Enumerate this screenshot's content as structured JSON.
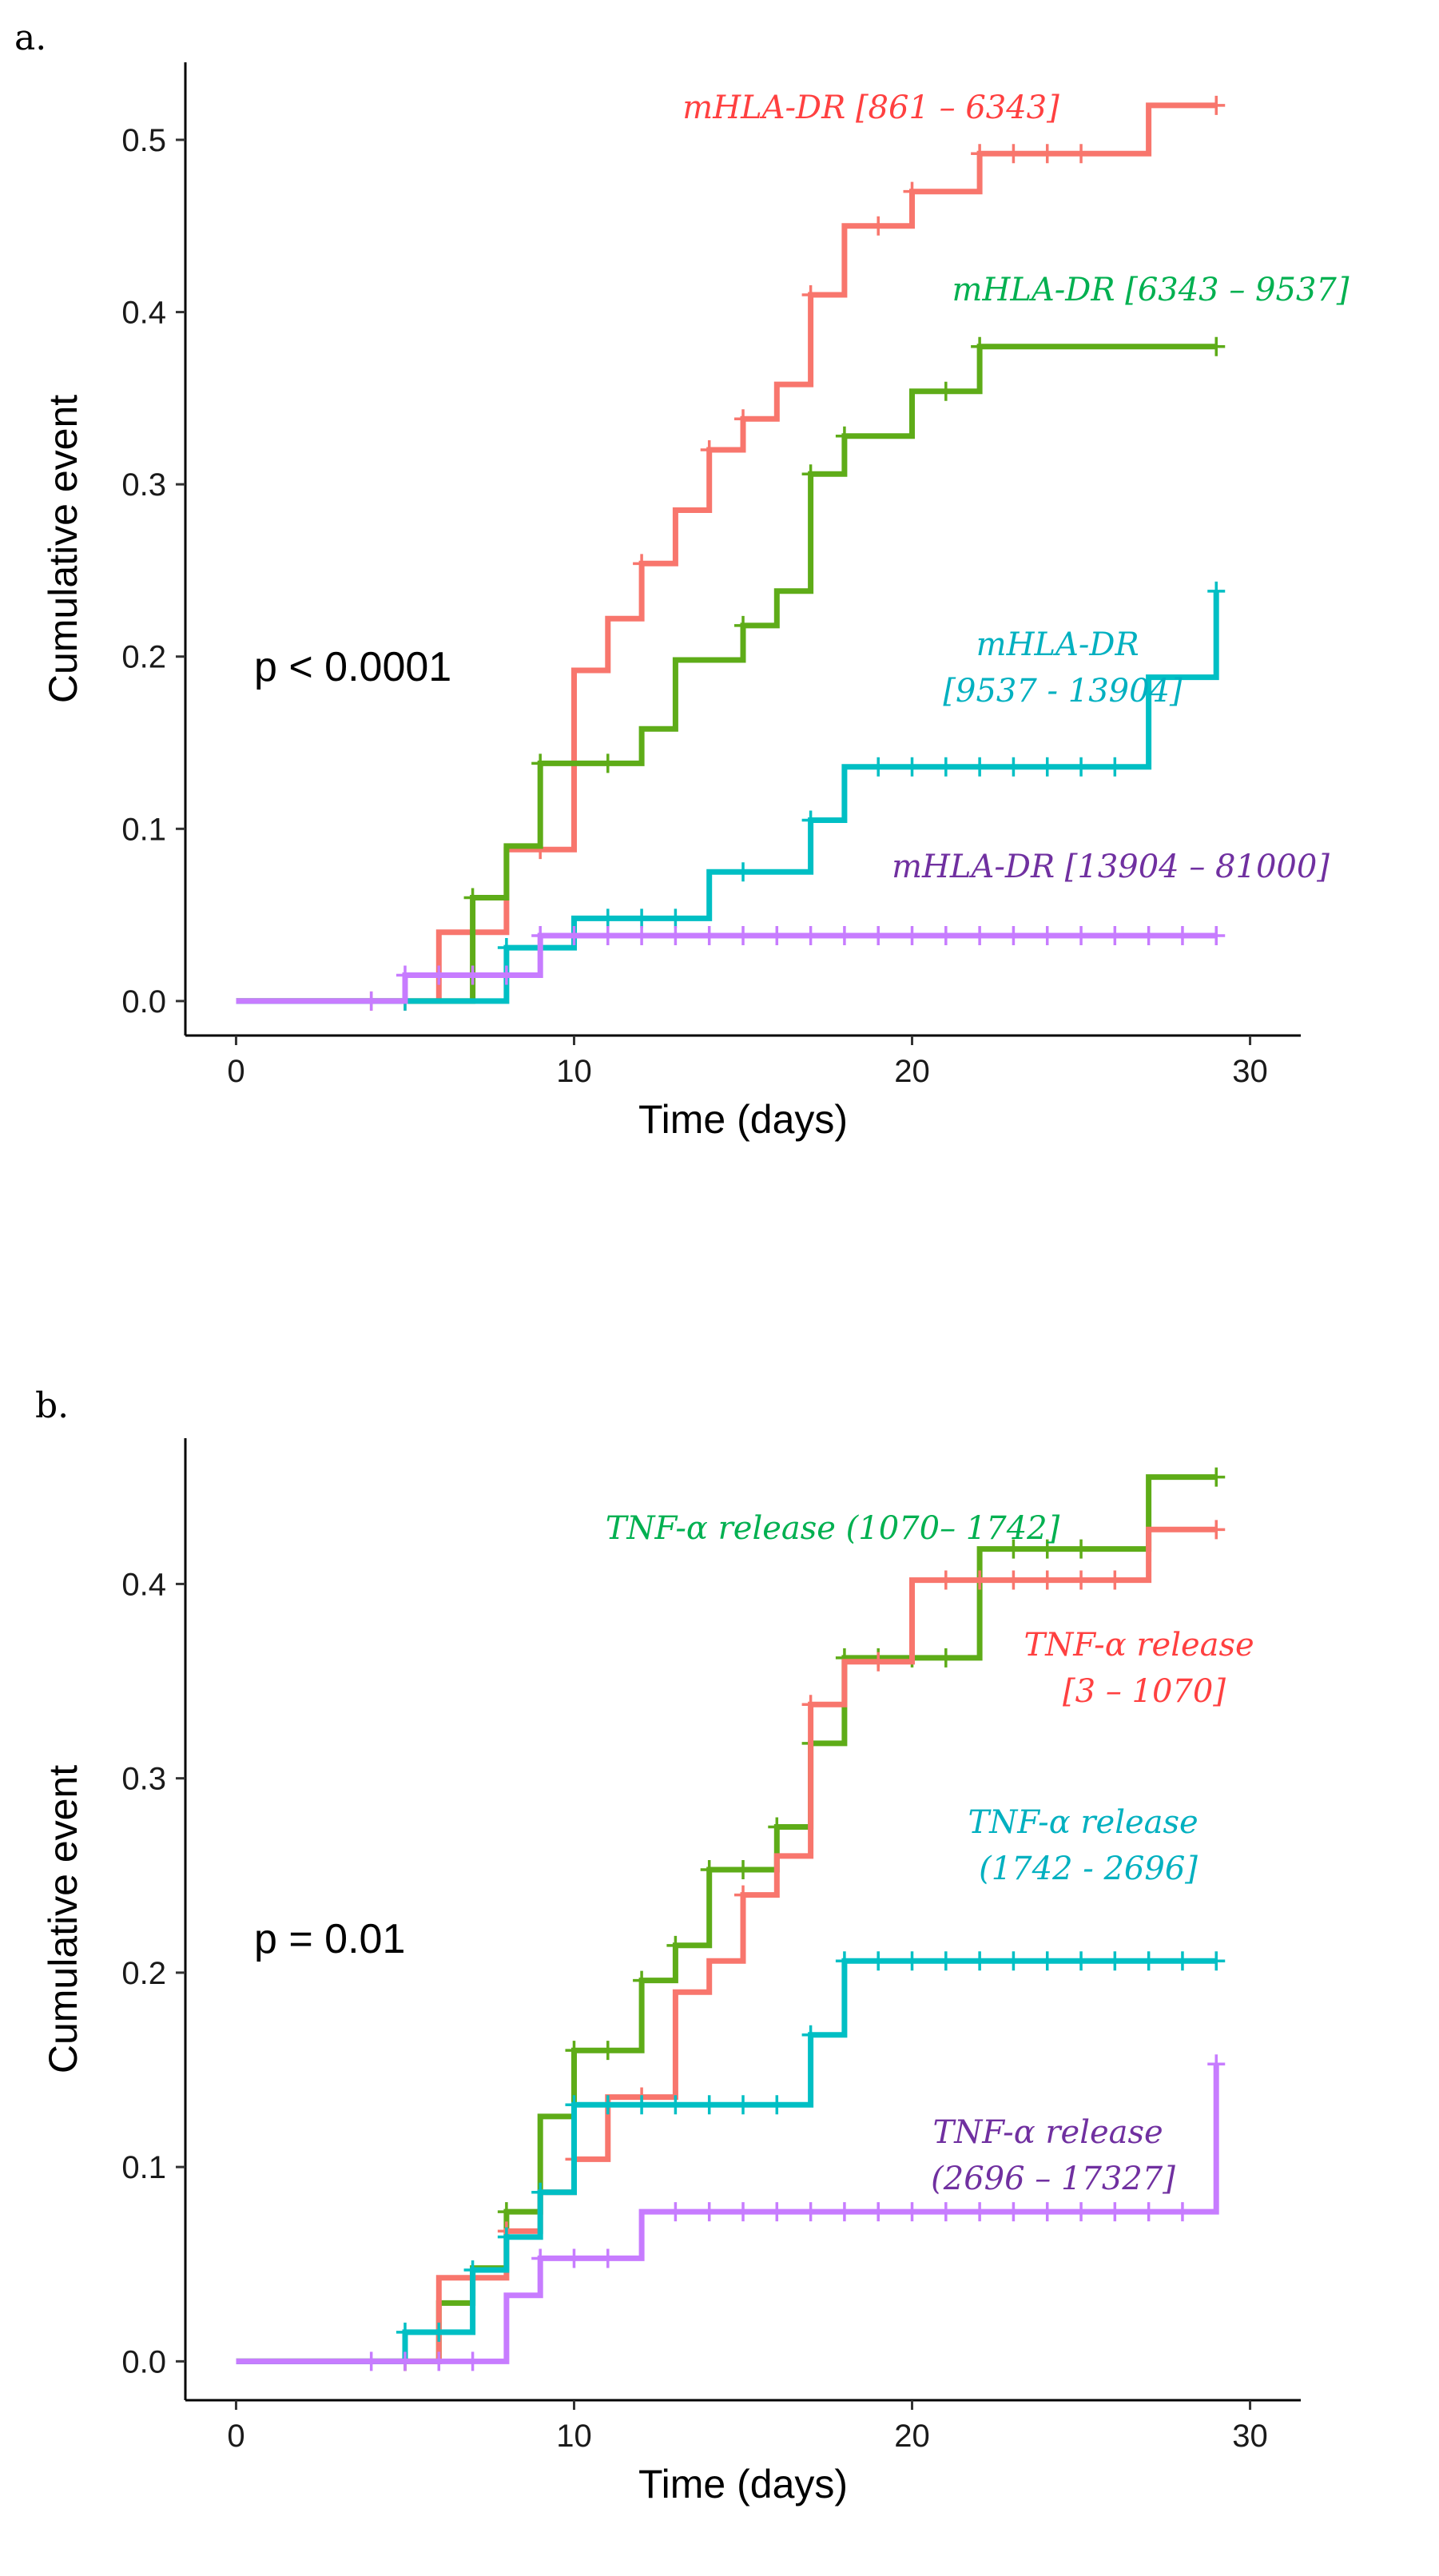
{
  "chart_data": [
    {
      "panel_label": "a.",
      "type": "line",
      "subtype": "step (Kaplan-Meier cumulative event)",
      "xlabel": "Time (days)",
      "ylabel": "Cumulative event",
      "xlim": [
        -1.5,
        31.5
      ],
      "ylim": [
        -0.02,
        0.545
      ],
      "xticks": [
        0,
        10,
        20,
        30
      ],
      "yticks": [
        0.0,
        0.1,
        0.2,
        0.3,
        0.4,
        0.5
      ],
      "ytick_labels": [
        "0.0",
        "0.1",
        "0.2",
        "0.3",
        "0.4",
        "0.5"
      ],
      "grid": false,
      "p_value_text": "p < 0.0001",
      "series": [
        {
          "name": "mHLA-DR [861 – 6343]",
          "label_lines": [
            "mHLA-DR [861 – 6343]"
          ],
          "color": "#f8766d",
          "label_color": "#ff4040",
          "steps": [
            [
              0,
              0
            ],
            [
              6,
              0.04
            ],
            [
              8,
              0.088
            ],
            [
              10,
              0.192
            ],
            [
              11,
              0.222
            ],
            [
              12,
              0.254
            ],
            [
              13,
              0.285
            ],
            [
              14,
              0.32
            ],
            [
              15,
              0.338
            ],
            [
              16,
              0.358
            ],
            [
              17,
              0.41
            ],
            [
              18,
              0.45
            ],
            [
              20,
              0.47
            ],
            [
              22,
              0.492
            ],
            [
              27,
              0.52
            ]
          ],
          "censor_x": [
            4,
            5,
            7,
            9,
            12,
            14,
            15,
            17,
            19,
            20,
            22,
            23,
            24,
            25,
            29
          ],
          "end_x": 29
        },
        {
          "name": "mHLA-DR [6343 – 9537]",
          "label_lines": [
            "mHLA-DR [6343 – 9537]"
          ],
          "color": "#5eac18",
          "label_color": "#00b050",
          "steps": [
            [
              0,
              0
            ],
            [
              7,
              0.06
            ],
            [
              8,
              0.09
            ],
            [
              9,
              0.138
            ],
            [
              12,
              0.158
            ],
            [
              13,
              0.198
            ],
            [
              15,
              0.218
            ],
            [
              16,
              0.238
            ],
            [
              17,
              0.306
            ],
            [
              18,
              0.328
            ],
            [
              20,
              0.354
            ],
            [
              22,
              0.38
            ]
          ],
          "censor_x": [
            7,
            9,
            11,
            15,
            17,
            18,
            21,
            22,
            29
          ],
          "end_x": 29
        },
        {
          "name": "mHLA-DR [9537 - 13904]",
          "label_lines": [
            "mHLA-DR",
            "[9537 - 13904]"
          ],
          "color": "#00bfc4",
          "label_color": "#00b0c0",
          "steps": [
            [
              0,
              0
            ],
            [
              8,
              0.031
            ],
            [
              10,
              0.048
            ],
            [
              14,
              0.075
            ],
            [
              17,
              0.105
            ],
            [
              18,
              0.136
            ],
            [
              27,
              0.188
            ],
            [
              29,
              0.238
            ]
          ],
          "censor_x": [
            5,
            8,
            11,
            12,
            13,
            15,
            17,
            19,
            20,
            21,
            22,
            23,
            24,
            25,
            26,
            29
          ],
          "end_x": 29
        },
        {
          "name": "mHLA-DR [13904 – 81000]",
          "label_lines": [
            "mHLA-DR [13904 – 81000]"
          ],
          "color": "#c77cff",
          "label_color": "#7030a0",
          "steps": [
            [
              0,
              0
            ],
            [
              5,
              0.015
            ],
            [
              9,
              0.038
            ]
          ],
          "censor_x": [
            4,
            5,
            6,
            7,
            8,
            9,
            10,
            11,
            12,
            13,
            14,
            15,
            16,
            17,
            18,
            19,
            20,
            21,
            22,
            23,
            24,
            25,
            26,
            27,
            28,
            29
          ],
          "end_x": 29
        }
      ]
    },
    {
      "panel_label": "b.",
      "type": "line",
      "subtype": "step (Kaplan-Meier cumulative event)",
      "xlabel": "Time (days)",
      "ylabel": "Cumulative event",
      "xlim": [
        -1.5,
        31.5
      ],
      "ylim": [
        -0.02,
        0.475
      ],
      "xticks": [
        0,
        10,
        20,
        30
      ],
      "yticks": [
        0.0,
        0.1,
        0.2,
        0.3,
        0.4
      ],
      "ytick_labels": [
        "0.0",
        "0.1",
        "0.2",
        "0.3",
        "0.4"
      ],
      "grid": false,
      "p_value_text": "p = 0.01",
      "series": [
        {
          "name": "TNF-α release (1070– 1742]",
          "label_lines": [
            "TNF-α release  (1070– 1742]"
          ],
          "color": "#5eac18",
          "label_color": "#00b050",
          "steps": [
            [
              0,
              0
            ],
            [
              6,
              0.03
            ],
            [
              7,
              0.048
            ],
            [
              8,
              0.077
            ],
            [
              9,
              0.126
            ],
            [
              10,
              0.16
            ],
            [
              12,
              0.196
            ],
            [
              13,
              0.214
            ],
            [
              14,
              0.253
            ],
            [
              16,
              0.275
            ],
            [
              17,
              0.318
            ],
            [
              18,
              0.362
            ],
            [
              22,
              0.418
            ],
            [
              27,
              0.455
            ]
          ],
          "censor_x": [
            5,
            8,
            10,
            11,
            12,
            13,
            14,
            15,
            16,
            17,
            18,
            19,
            20,
            21,
            23,
            24,
            25,
            29
          ],
          "end_x": 29
        },
        {
          "name": "TNF-α release [3 – 1070]",
          "label_lines": [
            "TNF-α release",
            "[3 – 1070]"
          ],
          "color": "#f8766d",
          "label_color": "#ff4040",
          "steps": [
            [
              0,
              0
            ],
            [
              6,
              0.043
            ],
            [
              8,
              0.067
            ],
            [
              9,
              0.087
            ],
            [
              10,
              0.104
            ],
            [
              11,
              0.136
            ],
            [
              13,
              0.19
            ],
            [
              14,
              0.206
            ],
            [
              15,
              0.24
            ],
            [
              16,
              0.26
            ],
            [
              17,
              0.338
            ],
            [
              18,
              0.36
            ],
            [
              20,
              0.402
            ],
            [
              27,
              0.428
            ]
          ],
          "censor_x": [
            5,
            8,
            10,
            12,
            15,
            17,
            19,
            21,
            22,
            23,
            24,
            25,
            26,
            29
          ],
          "end_x": 29
        },
        {
          "name": "TNF-α release (1742 - 2696]",
          "label_lines": [
            "TNF-α release",
            "(1742 - 2696]"
          ],
          "color": "#00bfc4",
          "label_color": "#00b0c0",
          "steps": [
            [
              0,
              0
            ],
            [
              5,
              0.015
            ],
            [
              7,
              0.047
            ],
            [
              8,
              0.064
            ],
            [
              9,
              0.087
            ],
            [
              10,
              0.132
            ],
            [
              17,
              0.168
            ],
            [
              18,
              0.206
            ]
          ],
          "censor_x": [
            5,
            6,
            7,
            8,
            9,
            10,
            11,
            12,
            13,
            14,
            15,
            16,
            17,
            18,
            19,
            20,
            21,
            22,
            23,
            24,
            25,
            26,
            27,
            28,
            29
          ],
          "end_x": 29
        },
        {
          "name": "TNF-α release (2696 – 17327]",
          "label_lines": [
            "TNF-α release",
            "(2696 – 17327]"
          ],
          "color": "#c77cff",
          "label_color": "#7030a0",
          "steps": [
            [
              0,
              0
            ],
            [
              8,
              0.034
            ],
            [
              9,
              0.053
            ],
            [
              12,
              0.077
            ],
            [
              29,
              0.153
            ]
          ],
          "censor_x": [
            4,
            5,
            6,
            7,
            9,
            10,
            11,
            13,
            14,
            15,
            16,
            17,
            18,
            19,
            20,
            21,
            22,
            23,
            24,
            25,
            26,
            27,
            28,
            29
          ],
          "end_x": 29
        }
      ]
    }
  ]
}
